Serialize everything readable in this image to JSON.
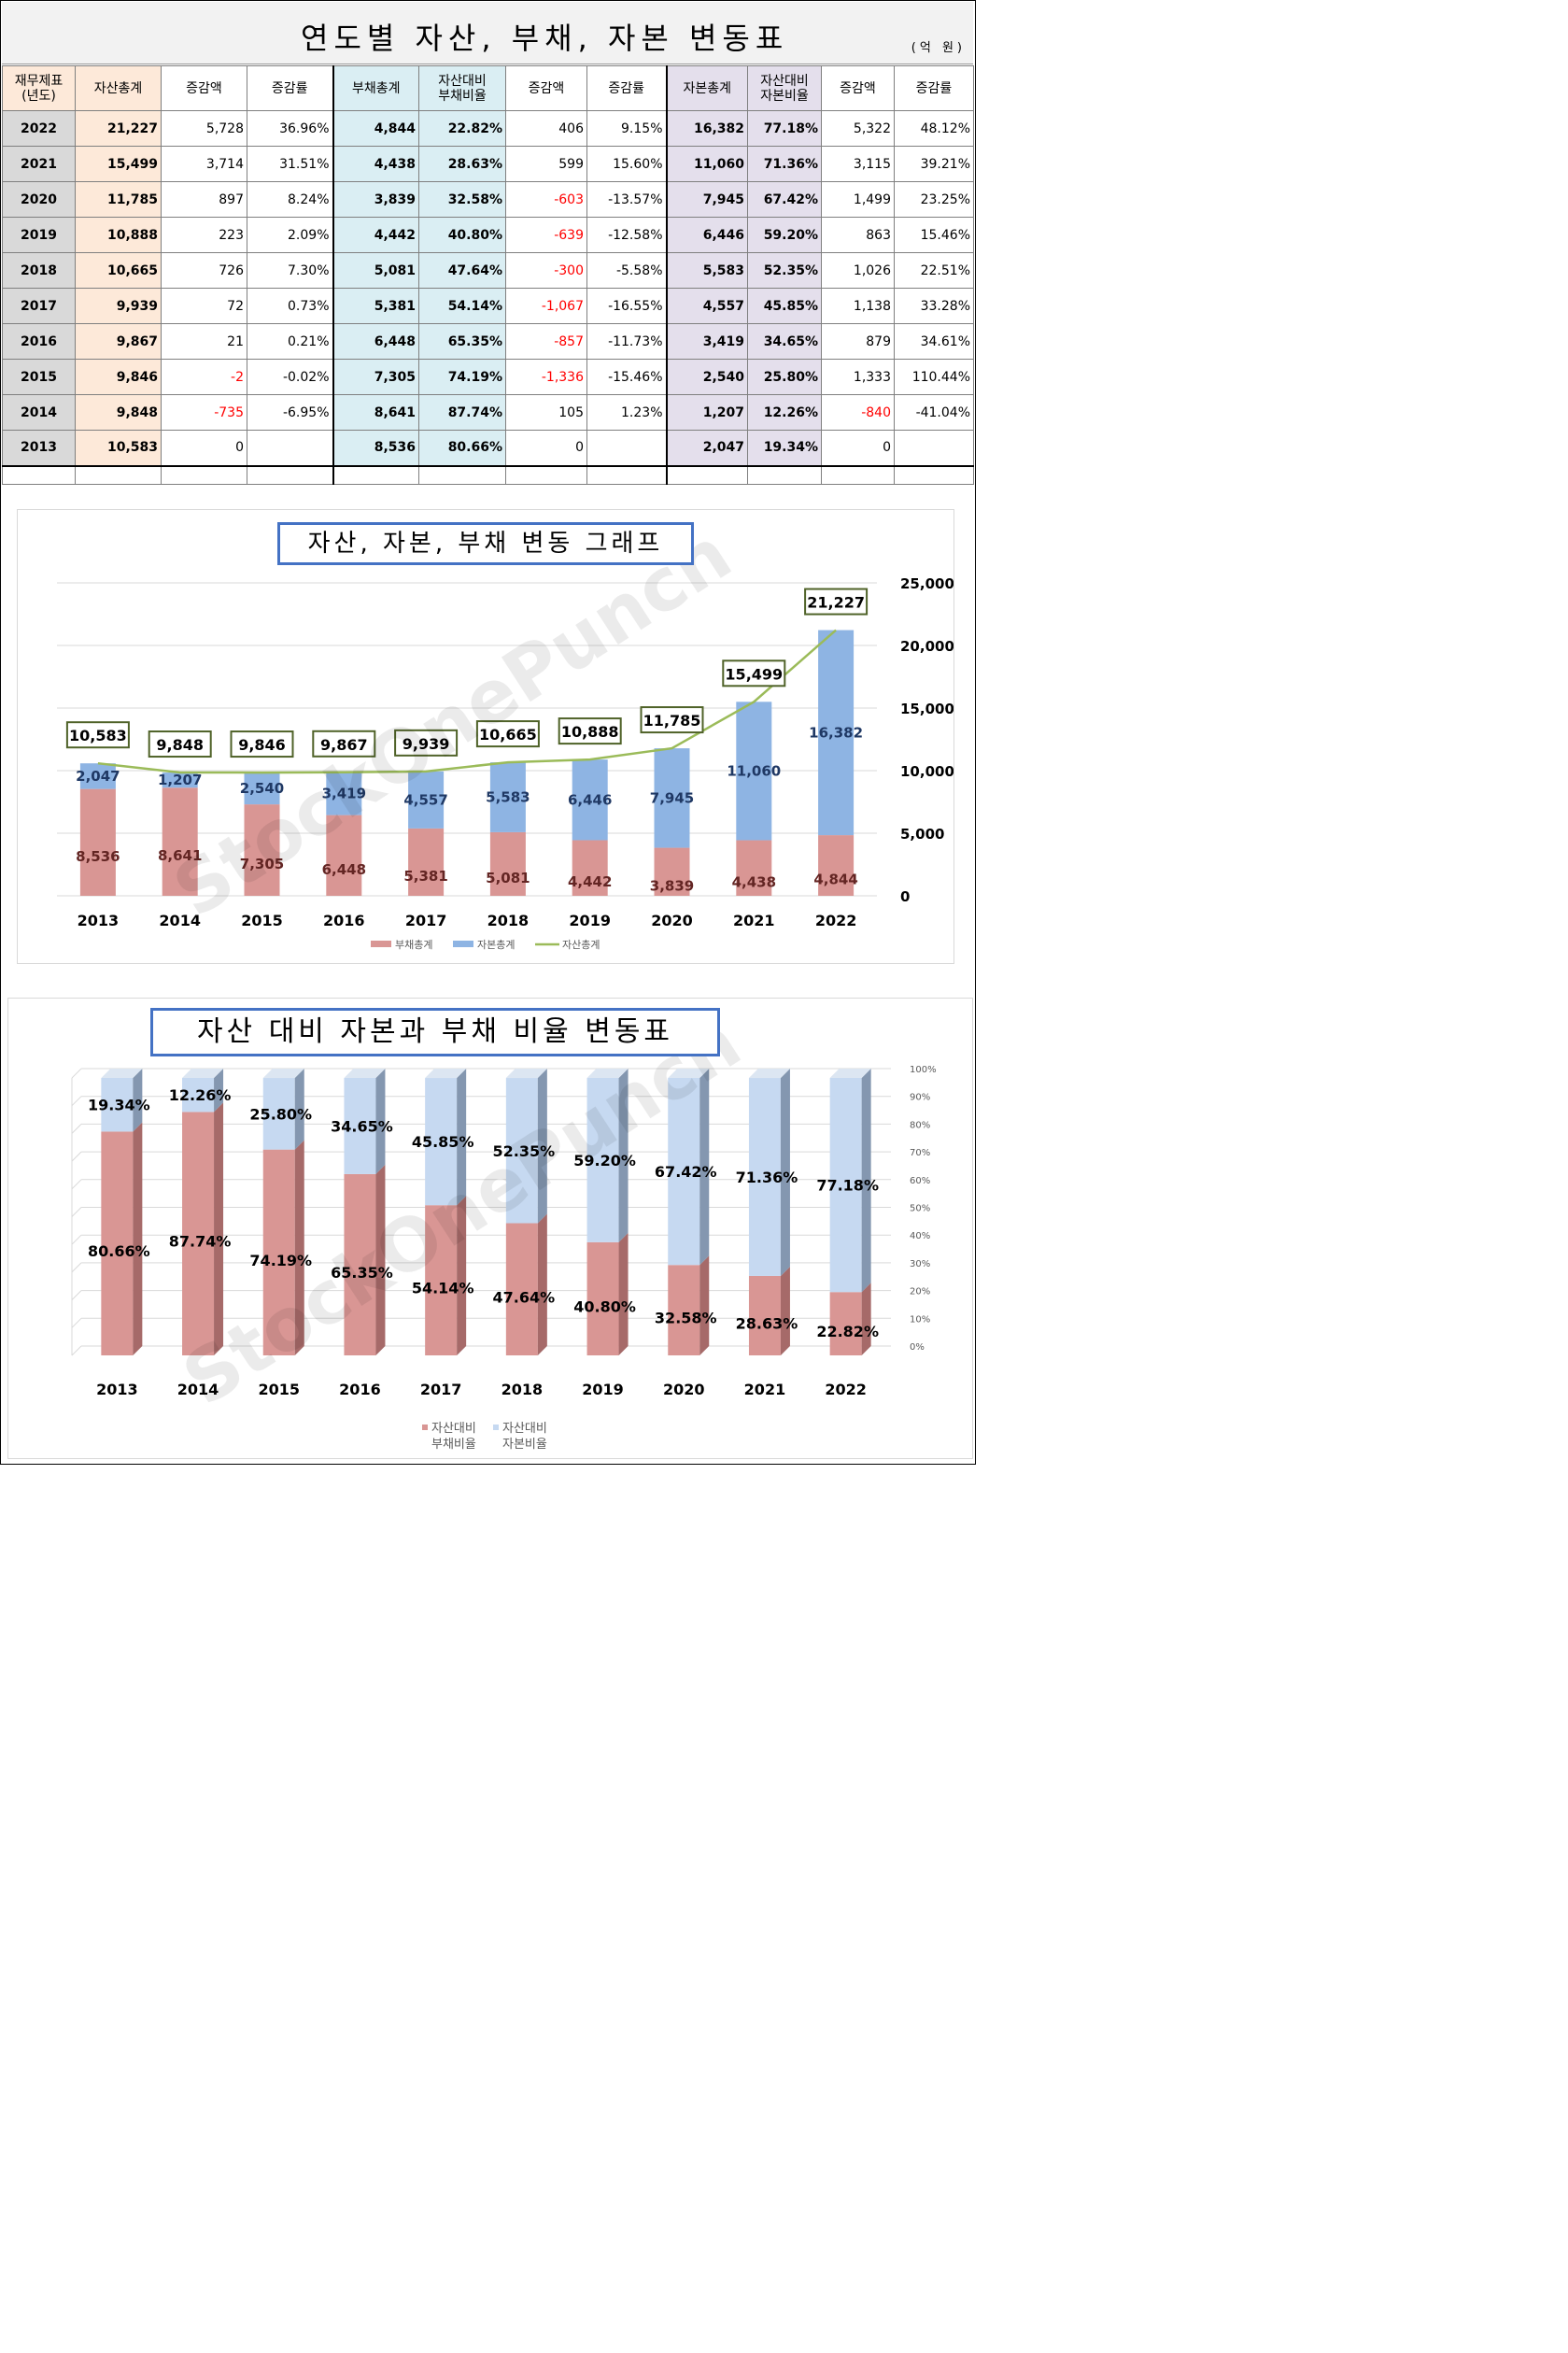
{
  "header": {
    "title": "연도별 자산, 부채, 자본 변동표",
    "unit": "(억 원)"
  },
  "table": {
    "columns": [
      "재무제표\n(년도)",
      "자산총계",
      "증감액",
      "증감률",
      "부채총계",
      "자산대비\n부채비율",
      "증감액",
      "증감률",
      "자본총계",
      "자산대비\n자본비율",
      "증감액",
      "증감률"
    ],
    "rows": [
      [
        "2022",
        "21,227",
        "5,728",
        "36.96%",
        "4,844",
        "22.82%",
        "406",
        "9.15%",
        "16,382",
        "77.18%",
        "5,322",
        "48.12%"
      ],
      [
        "2021",
        "15,499",
        "3,714",
        "31.51%",
        "4,438",
        "28.63%",
        "599",
        "15.60%",
        "11,060",
        "71.36%",
        "3,115",
        "39.21%"
      ],
      [
        "2020",
        "11,785",
        "897",
        "8.24%",
        "3,839",
        "32.58%",
        "-603",
        "-13.57%",
        "7,945",
        "67.42%",
        "1,499",
        "23.25%"
      ],
      [
        "2019",
        "10,888",
        "223",
        "2.09%",
        "4,442",
        "40.80%",
        "-639",
        "-12.58%",
        "6,446",
        "59.20%",
        "863",
        "15.46%"
      ],
      [
        "2018",
        "10,665",
        "726",
        "7.30%",
        "5,081",
        "47.64%",
        "-300",
        "-5.58%",
        "5,583",
        "52.35%",
        "1,026",
        "22.51%"
      ],
      [
        "2017",
        "9,939",
        "72",
        "0.73%",
        "5,381",
        "54.14%",
        "-1,067",
        "-16.55%",
        "4,557",
        "45.85%",
        "1,138",
        "33.28%"
      ],
      [
        "2016",
        "9,867",
        "21",
        "0.21%",
        "6,448",
        "65.35%",
        "-857",
        "-11.73%",
        "3,419",
        "34.65%",
        "879",
        "34.61%"
      ],
      [
        "2015",
        "9,846",
        "-2",
        "-0.02%",
        "7,305",
        "74.19%",
        "-1,336",
        "-15.46%",
        "2,540",
        "25.80%",
        "1,333",
        "110.44%"
      ],
      [
        "2014",
        "9,848",
        "-735",
        "-6.95%",
        "8,641",
        "87.74%",
        "105",
        "1.23%",
        "1,207",
        "12.26%",
        "-840",
        "-41.04%"
      ],
      [
        "2013",
        "10,583",
        "0",
        "",
        "8,536",
        "80.66%",
        "0",
        "",
        "2,047",
        "19.34%",
        "0",
        ""
      ]
    ]
  },
  "watermark": "StockOnePunch",
  "colors": {
    "debt_bar": "#d99694",
    "equity_bar": "#8eb4e3",
    "asset_line": "#9bbb59",
    "ratio_debt": "#d99694",
    "ratio_equity": "#c6d9f1",
    "title_border": "#4472c4",
    "negative": "#ff0000"
  },
  "chart_data": [
    {
      "type": "bar",
      "stacked": true,
      "title": "자산, 자본, 부채 변동 그래프",
      "categories": [
        "2013",
        "2014",
        "2015",
        "2016",
        "2017",
        "2018",
        "2019",
        "2020",
        "2021",
        "2022"
      ],
      "series": [
        {
          "name": "부채총계",
          "type": "bar",
          "values": [
            8536,
            8641,
            7305,
            6448,
            5381,
            5081,
            4442,
            3839,
            4438,
            4844
          ]
        },
        {
          "name": "자본총계",
          "type": "bar",
          "values": [
            2047,
            1207,
            2540,
            3419,
            4557,
            5583,
            6446,
            7945,
            11060,
            16382
          ]
        },
        {
          "name": "자산총계",
          "type": "line",
          "values": [
            10583,
            9848,
            9846,
            9867,
            9939,
            10665,
            10888,
            11785,
            15499,
            21227
          ]
        }
      ],
      "y_ticks": [
        "0",
        "5,000",
        "10,000",
        "15,000",
        "20,000",
        "25,000"
      ],
      "ylim": [
        0,
        25000
      ],
      "y_axis_position": "right",
      "legend": "bottom",
      "grid": true
    },
    {
      "type": "bar",
      "stacked": true,
      "three_d": true,
      "title": "자산 대비 자본과 부채 비율 변동표",
      "categories": [
        "2013",
        "2014",
        "2015",
        "2016",
        "2017",
        "2018",
        "2019",
        "2020",
        "2021",
        "2022"
      ],
      "series": [
        {
          "name": "자산대비 부채비율",
          "values": [
            80.66,
            87.74,
            74.19,
            65.35,
            54.14,
            47.64,
            40.8,
            32.58,
            28.63,
            22.82
          ],
          "labels": [
            "80.66%",
            "87.74%",
            "74.19%",
            "65.35%",
            "54.14%",
            "47.64%",
            "40.80%",
            "32.58%",
            "28.63%",
            "22.82%"
          ]
        },
        {
          "name": "자산대비 자본비율",
          "values": [
            19.34,
            12.26,
            25.8,
            34.65,
            45.85,
            52.35,
            59.2,
            67.42,
            71.36,
            77.18
          ],
          "labels": [
            "19.34%",
            "12.26%",
            "25.80%",
            "34.65%",
            "45.85%",
            "52.35%",
            "59.20%",
            "67.42%",
            "71.36%",
            "77.18%"
          ]
        }
      ],
      "y_ticks": [
        "0%",
        "10%",
        "20%",
        "30%",
        "40%",
        "50%",
        "60%",
        "70%",
        "80%",
        "90%",
        "100%"
      ],
      "ylim": [
        0,
        100
      ],
      "y_axis_position": "right",
      "legend": "bottom",
      "grid": true
    }
  ]
}
